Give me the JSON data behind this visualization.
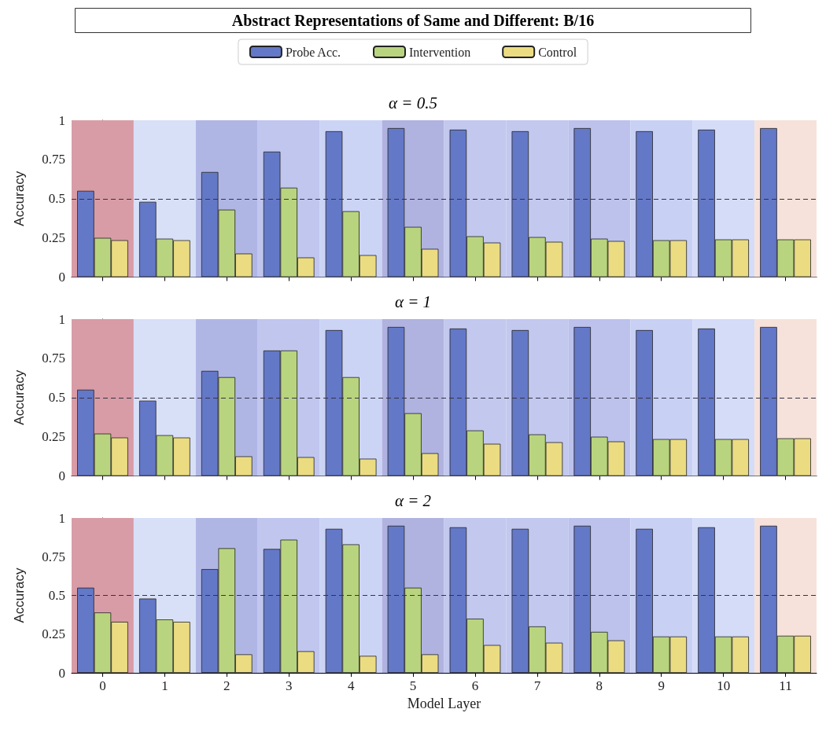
{
  "chart_data": [
    {
      "type": "bar",
      "title": "Abstract Representations of Same and Different: B/16",
      "subtitle": "α = 0.5",
      "ylabel": "Accuracy",
      "legend": "top",
      "tick_labels": "y",
      "grid": false,
      "categories": [
        "0",
        "1",
        "2",
        "3",
        "4",
        "5",
        "6",
        "7",
        "8",
        "9",
        "10",
        "11"
      ],
      "ylim": [
        0,
        1
      ],
      "yticks": [
        0,
        0.25,
        0.5,
        0.75,
        1
      ],
      "series": [
        {
          "name": "Probe Acc.",
          "color": "#6478c8",
          "values": [
            0.55,
            0.48,
            0.67,
            0.8,
            0.93,
            0.95,
            0.94,
            0.93,
            0.95,
            0.93,
            0.94,
            0.95
          ]
        },
        {
          "name": "Intervention",
          "color": "#b9d47e",
          "values": [
            0.25,
            0.245,
            0.43,
            0.57,
            0.42,
            0.32,
            0.26,
            0.255,
            0.245,
            0.235,
            0.24,
            0.24
          ]
        },
        {
          "name": "Control",
          "color": "#ebdc82",
          "values": [
            0.235,
            0.235,
            0.15,
            0.125,
            0.14,
            0.18,
            0.22,
            0.225,
            0.23,
            0.235,
            0.24,
            0.24
          ]
        }
      ],
      "ref_lines": [
        {
          "axis": "y",
          "value": 0.5,
          "color": "#333344",
          "line_style": "dashed"
        }
      ],
      "bands": [
        {
          "axis": "x",
          "from": "0",
          "to": "0",
          "color": "#d89ca6"
        },
        {
          "axis": "x",
          "from": "1",
          "to": "1",
          "color": "#d8e0f8"
        },
        {
          "axis": "x",
          "from": "2",
          "to": "2",
          "color": "#b0b6e4"
        },
        {
          "axis": "x",
          "from": "3",
          "to": "3",
          "color": "#c0c6ee"
        },
        {
          "axis": "x",
          "from": "4",
          "to": "4",
          "color": "#ccd4f6"
        },
        {
          "axis": "x",
          "from": "5",
          "to": "5",
          "color": "#b0b2e0"
        },
        {
          "axis": "x",
          "from": "6",
          "to": "6",
          "color": "#c2c8ee"
        },
        {
          "axis": "x",
          "from": "7",
          "to": "7",
          "color": "#c2c8ee"
        },
        {
          "axis": "x",
          "from": "8",
          "to": "8",
          "color": "#bcc2ec"
        },
        {
          "axis": "x",
          "from": "9",
          "to": "9",
          "color": "#c8d0f4"
        },
        {
          "axis": "x",
          "from": "10",
          "to": "10",
          "color": "#d4dcf8"
        },
        {
          "axis": "x",
          "from": "11",
          "to": "11",
          "color": "#f6e2da"
        }
      ]
    },
    {
      "type": "bar",
      "subtitle": "α = 1",
      "ylabel": "Accuracy",
      "tick_labels": "y",
      "grid": false,
      "categories": [
        "0",
        "1",
        "2",
        "3",
        "4",
        "5",
        "6",
        "7",
        "8",
        "9",
        "10",
        "11"
      ],
      "ylim": [
        0,
        1
      ],
      "yticks": [
        0,
        0.25,
        0.5,
        0.75,
        1
      ],
      "series": [
        {
          "color": "#6478c8",
          "values": [
            0.55,
            0.48,
            0.67,
            0.8,
            0.93,
            0.95,
            0.94,
            0.93,
            0.95,
            0.93,
            0.94,
            0.95
          ]
        },
        {
          "color": "#b9d47e",
          "values": [
            0.27,
            0.26,
            0.63,
            0.8,
            0.63,
            0.4,
            0.29,
            0.265,
            0.25,
            0.235,
            0.235,
            0.24
          ]
        },
        {
          "color": "#ebdc82",
          "values": [
            0.245,
            0.245,
            0.125,
            0.12,
            0.11,
            0.145,
            0.205,
            0.215,
            0.22,
            0.235,
            0.235,
            0.24
          ]
        }
      ],
      "ref_lines": [
        {
          "axis": "y",
          "value": 0.5,
          "color": "#333344",
          "line_style": "dashed"
        }
      ],
      "bands": [
        {
          "axis": "x",
          "from": "0",
          "to": "0",
          "color": "#d89ca6"
        },
        {
          "axis": "x",
          "from": "1",
          "to": "1",
          "color": "#d8e0f8"
        },
        {
          "axis": "x",
          "from": "2",
          "to": "2",
          "color": "#b0b6e4"
        },
        {
          "axis": "x",
          "from": "3",
          "to": "3",
          "color": "#c0c6ee"
        },
        {
          "axis": "x",
          "from": "4",
          "to": "4",
          "color": "#ccd4f6"
        },
        {
          "axis": "x",
          "from": "5",
          "to": "5",
          "color": "#b0b2e0"
        },
        {
          "axis": "x",
          "from": "6",
          "to": "6",
          "color": "#c2c8ee"
        },
        {
          "axis": "x",
          "from": "7",
          "to": "7",
          "color": "#c2c8ee"
        },
        {
          "axis": "x",
          "from": "8",
          "to": "8",
          "color": "#bcc2ec"
        },
        {
          "axis": "x",
          "from": "9",
          "to": "9",
          "color": "#c8d0f4"
        },
        {
          "axis": "x",
          "from": "10",
          "to": "10",
          "color": "#d4dcf8"
        },
        {
          "axis": "x",
          "from": "11",
          "to": "11",
          "color": "#f6e2da"
        }
      ]
    },
    {
      "type": "bar",
      "subtitle": "α = 2",
      "ylabel": "Accuracy",
      "xlabel": "Model Layer",
      "grid": false,
      "categories": [
        "0",
        "1",
        "2",
        "3",
        "4",
        "5",
        "6",
        "7",
        "8",
        "9",
        "10",
        "11"
      ],
      "ylim": [
        0,
        1
      ],
      "yticks": [
        0,
        0.25,
        0.5,
        0.75,
        1
      ],
      "series": [
        {
          "color": "#6478c8",
          "values": [
            0.55,
            0.48,
            0.67,
            0.8,
            0.93,
            0.95,
            0.94,
            0.93,
            0.95,
            0.93,
            0.94,
            0.95
          ]
        },
        {
          "color": "#b9d47e",
          "values": [
            0.39,
            0.345,
            0.805,
            0.86,
            0.83,
            0.55,
            0.35,
            0.3,
            0.265,
            0.235,
            0.235,
            0.24
          ]
        },
        {
          "color": "#ebdc82",
          "values": [
            0.33,
            0.33,
            0.12,
            0.14,
            0.11,
            0.12,
            0.18,
            0.195,
            0.21,
            0.235,
            0.235,
            0.24
          ]
        }
      ],
      "ref_lines": [
        {
          "axis": "y",
          "value": 0.5,
          "color": "#333344",
          "line_style": "dashed"
        }
      ],
      "bands": [
        {
          "axis": "x",
          "from": "0",
          "to": "0",
          "color": "#d89ca6"
        },
        {
          "axis": "x",
          "from": "1",
          "to": "1",
          "color": "#d8e0f8"
        },
        {
          "axis": "x",
          "from": "2",
          "to": "2",
          "color": "#b0b6e4"
        },
        {
          "axis": "x",
          "from": "3",
          "to": "3",
          "color": "#c0c6ee"
        },
        {
          "axis": "x",
          "from": "4",
          "to": "4",
          "color": "#ccd4f6"
        },
        {
          "axis": "x",
          "from": "5",
          "to": "5",
          "color": "#b0b2e0"
        },
        {
          "axis": "x",
          "from": "6",
          "to": "6",
          "color": "#c2c8ee"
        },
        {
          "axis": "x",
          "from": "7",
          "to": "7",
          "color": "#c2c8ee"
        },
        {
          "axis": "x",
          "from": "8",
          "to": "8",
          "color": "#bcc2ec"
        },
        {
          "axis": "x",
          "from": "9",
          "to": "9",
          "color": "#c8d0f4"
        },
        {
          "axis": "x",
          "from": "10",
          "to": "10",
          "color": "#d4dcf8"
        },
        {
          "axis": "x",
          "from": "11",
          "to": "11",
          "color": "#f6e2da"
        }
      ]
    }
  ]
}
